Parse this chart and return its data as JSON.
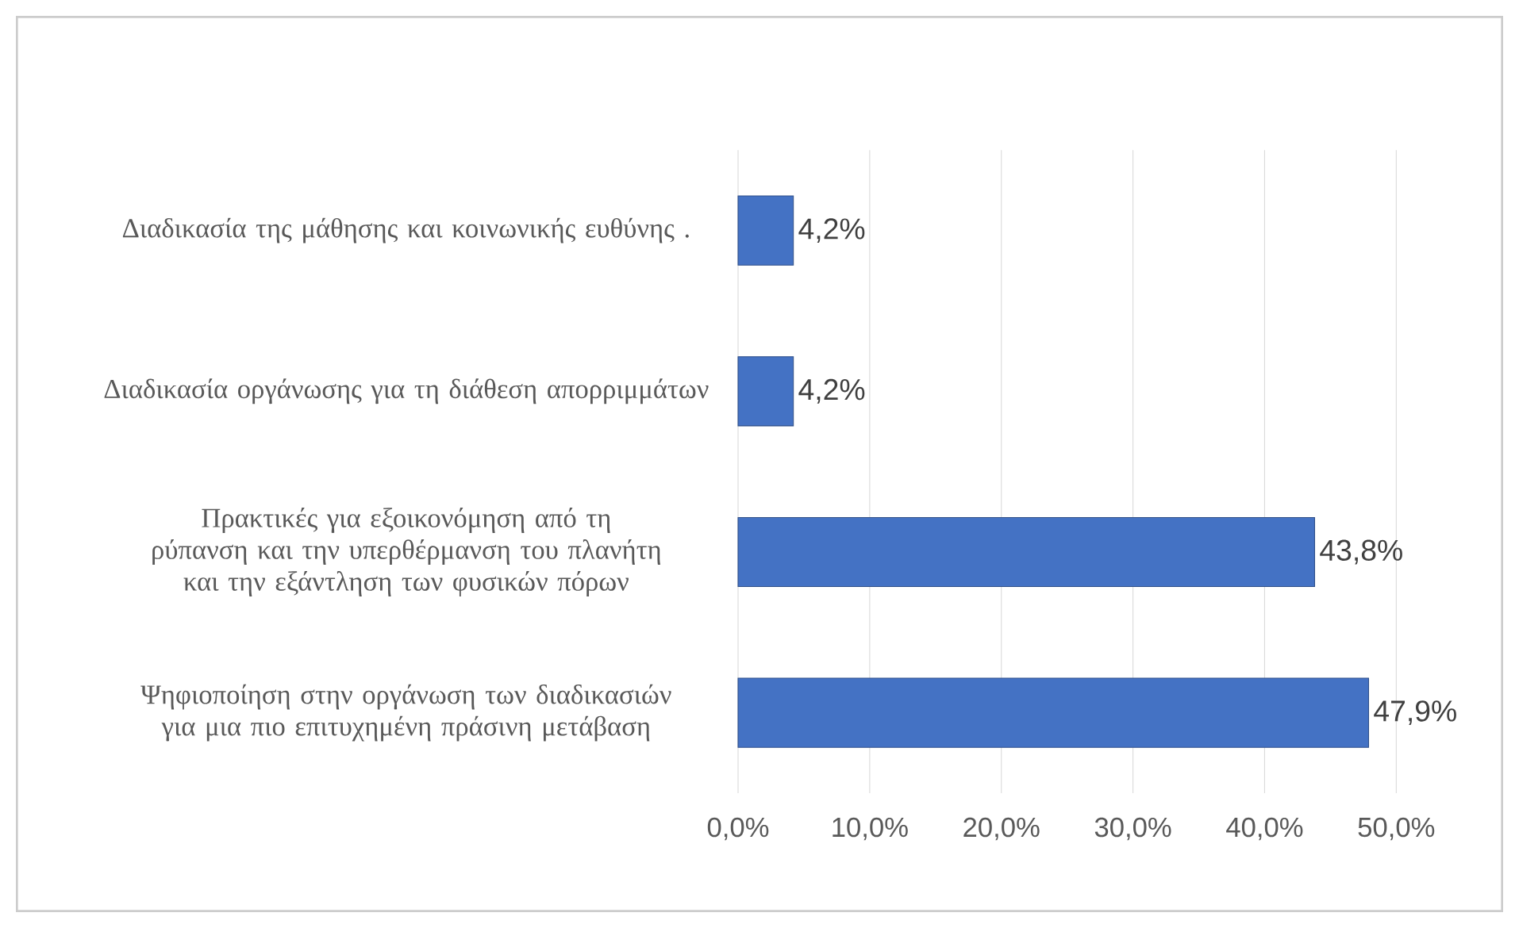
{
  "chart_data": {
    "type": "bar",
    "orientation": "horizontal",
    "categories": [
      "Διαδικασία της μάθησης και  κοινωνικής ευθύνης .",
      "Διαδικασία οργάνωσης για τη διάθεση απορριμμάτων",
      "Πρακτικές για εξοικονόμηση από τη ρύπανση και  την υπερθέρμανση του πλανήτη και την εξάντληση των φυσικών πόρων",
      "Ψηφιοποίηση στην οργάνωση των διαδικασιών για μια πιο επιτυχημένη πράσινη μετάβαση"
    ],
    "values": [
      4.2,
      4.2,
      43.8,
      47.9
    ],
    "value_labels": [
      "4,2%",
      "4,2%",
      "43,8%",
      "47,9%"
    ],
    "color": "#4472c4",
    "xlim": [
      0,
      50
    ],
    "xticks": [
      {
        "value": 0,
        "label": "0,0%"
      },
      {
        "value": 10,
        "label": "10,0%"
      },
      {
        "value": 20,
        "label": "20,0%"
      },
      {
        "value": 30,
        "label": "30,0%"
      },
      {
        "value": 40,
        "label": "40,0%"
      },
      {
        "value": 50,
        "label": "50,0%"
      }
    ],
    "grid": "x"
  }
}
